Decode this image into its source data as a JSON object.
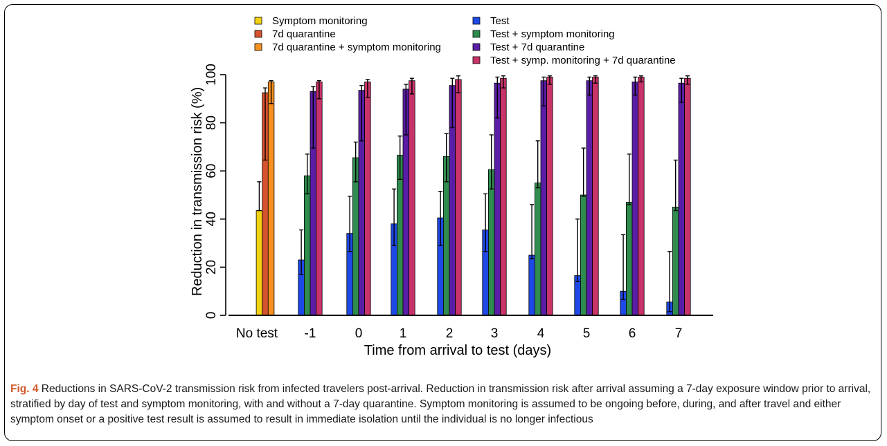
{
  "chart_data": {
    "type": "bar",
    "ylabel": "Reduction in transmission risk (%)",
    "xlabel": "Time from arrival to test (days)",
    "ylim": [
      0,
      100
    ],
    "yticks": [
      "0",
      "20",
      "40",
      "60",
      "80",
      "100"
    ],
    "categories": [
      "No test",
      "-1",
      "0",
      "1",
      "2",
      "3",
      "4",
      "5",
      "6",
      "7"
    ],
    "grid": false,
    "legend_position": "top",
    "series": [
      {
        "name": "Symptom monitoring",
        "color": "#f2d313",
        "values": [
          43.5,
          null,
          null,
          null,
          null,
          null,
          null,
          null,
          null,
          null
        ],
        "err_low": [
          43.5,
          null,
          null,
          null,
          null,
          null,
          null,
          null,
          null,
          null
        ],
        "err_high": [
          55.5,
          null,
          null,
          null,
          null,
          null,
          null,
          null,
          null,
          null
        ]
      },
      {
        "name": "7d quarantine",
        "color": "#d6532f",
        "values": [
          92.5,
          null,
          null,
          null,
          null,
          null,
          null,
          null,
          null,
          null
        ],
        "err_low": [
          64.5,
          null,
          null,
          null,
          null,
          null,
          null,
          null,
          null,
          null
        ],
        "err_high": [
          94.5,
          null,
          null,
          null,
          null,
          null,
          null,
          null,
          null,
          null
        ]
      },
      {
        "name": "7d quarantine + symptom monitoring",
        "color": "#f6901e",
        "values": [
          97,
          null,
          null,
          null,
          null,
          null,
          null,
          null,
          null,
          null
        ],
        "err_low": [
          88,
          null,
          null,
          null,
          null,
          null,
          null,
          null,
          null,
          null
        ],
        "err_high": [
          97.5,
          null,
          null,
          null,
          null,
          null,
          null,
          null,
          null,
          null
        ]
      },
      {
        "name": "Test",
        "color": "#1f49e6",
        "values": [
          null,
          23,
          34,
          38,
          40.5,
          35.5,
          25,
          16.5,
          10,
          5.5
        ],
        "err_low": [
          null,
          17,
          26.5,
          29,
          29,
          26.5,
          23.5,
          14,
          6.5,
          1.5
        ],
        "err_high": [
          null,
          35.5,
          49.5,
          52.5,
          51.5,
          50.5,
          46,
          40,
          33.5,
          26.5
        ]
      },
      {
        "name": "Test + symptom monitoring",
        "color": "#2f8c4e",
        "values": [
          null,
          58,
          65.5,
          66.5,
          66,
          60.5,
          55,
          50,
          47,
          45
        ],
        "err_low": [
          null,
          50.5,
          55.5,
          56.5,
          55.5,
          52.5,
          53,
          49.5,
          46,
          43.5
        ],
        "err_high": [
          null,
          67,
          72,
          74.5,
          75.5,
          75,
          72.5,
          69.5,
          67,
          64.5
        ]
      },
      {
        "name": "Test + 7d quarantine",
        "color": "#5a1ea6",
        "values": [
          null,
          93,
          93.5,
          94,
          95.5,
          96.5,
          97.5,
          97.5,
          97,
          96.5
        ],
        "err_low": [
          null,
          69.5,
          72.5,
          75,
          78,
          82,
          87,
          91.5,
          91.5,
          88.5
        ],
        "err_high": [
          null,
          95,
          95.5,
          96,
          98.5,
          99,
          99,
          99,
          99,
          98.5
        ]
      },
      {
        "name": "Test + symp. monitoring + 7d quarantine",
        "color": "#c8336a",
        "values": [
          null,
          97,
          97,
          97.5,
          98,
          98.5,
          99,
          99,
          99,
          98.5
        ],
        "err_low": [
          null,
          90,
          90.5,
          92,
          92.5,
          94.5,
          96,
          96.5,
          97,
          96
        ],
        "err_high": [
          null,
          97.5,
          98,
          98.5,
          99.5,
          99.5,
          99.5,
          99.5,
          99.5,
          99.5
        ]
      }
    ]
  },
  "caption": {
    "label": "Fig. 4",
    "text": "Reductions in SARS-CoV-2 transmission risk from infected travelers post-arrival. Reduction in transmission risk after arrival assuming a 7-day exposure window prior to arrival, stratified by day of test and symptom monitoring, with and without a 7-day quarantine. Symptom monitoring is assumed to be ongoing before, during, and after travel and either symptom onset or a positive test result is assumed to result in immediate isolation until the individual is no longer infectious"
  }
}
